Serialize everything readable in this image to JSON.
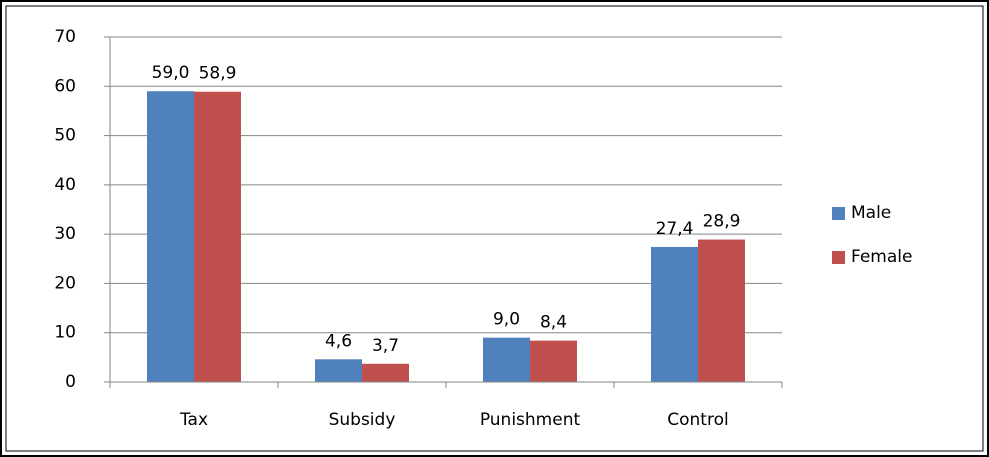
{
  "chart_data": {
    "type": "bar",
    "categories": [
      "Tax",
      "Subsidy",
      "Punishment",
      "Control"
    ],
    "series": [
      {
        "name": "Male",
        "color": "#4f81bd",
        "values": [
          59.0,
          4.6,
          9.0,
          27.4
        ],
        "value_labels": [
          "59,0",
          "4,6",
          "9,0",
          "27,4"
        ]
      },
      {
        "name": "Female",
        "color": "#c0504d",
        "values": [
          58.9,
          3.7,
          8.4,
          28.9
        ],
        "value_labels": [
          "58,9",
          "3,7",
          "8,4",
          "28,9"
        ]
      }
    ],
    "ylim": [
      0,
      70
    ],
    "yticks": [
      0,
      10,
      20,
      30,
      40,
      50,
      60,
      70
    ],
    "grid": true,
    "legend": "right"
  }
}
